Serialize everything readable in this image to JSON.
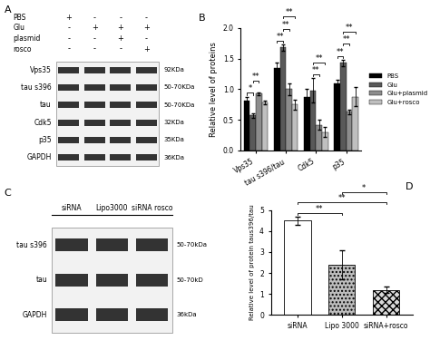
{
  "blots": [
    {
      "panel": "A",
      "lanes": 4,
      "conditions": [
        {
          "name": "PBS",
          "marks": [
            "+",
            "-",
            "-",
            "-"
          ]
        },
        {
          "name": "Glu",
          "marks": [
            "-",
            "+",
            "+",
            "+"
          ]
        },
        {
          "name": "plasmid",
          "marks": [
            "-",
            "-",
            "+",
            "-"
          ]
        },
        {
          "name": "rosco",
          "marks": [
            "-",
            "-",
            "-",
            "+"
          ]
        }
      ],
      "rows": [
        {
          "label": "Vps35",
          "size": "92KDa"
        },
        {
          "label": "tau s396",
          "size": "50-70KDa"
        },
        {
          "label": "tau",
          "size": "50-70KDa"
        },
        {
          "label": "Cdk5",
          "size": "32KDa"
        },
        {
          "label": "p35",
          "size": "35KDa"
        },
        {
          "label": "GAPDH",
          "size": "36KDa"
        }
      ]
    },
    {
      "panel": "C",
      "lane_labels": [
        "siRNA",
        "Lipo3000",
        "siRNA rosco"
      ],
      "rows": [
        {
          "label": "tau s396",
          "size": "50-70kDa"
        },
        {
          "label": "tau",
          "size": "50-70kD"
        },
        {
          "label": "GAPDH",
          "size": "36kDa"
        }
      ]
    }
  ],
  "chart_data": [
    {
      "type": "bar",
      "title": "B",
      "y_label": "Relative level of proteins",
      "categories": [
        "Vps35",
        "tau s396/tau",
        "Cdk5",
        "p35"
      ],
      "series": [
        {
          "name": "PBS",
          "color": "#000000",
          "values": [
            0.82,
            1.35,
            0.88,
            1.1
          ],
          "errors": [
            0.06,
            0.08,
            0.12,
            0.06
          ]
        },
        {
          "name": "Glu",
          "color": "#595959",
          "values": [
            0.57,
            1.68,
            0.98,
            1.43
          ],
          "errors": [
            0.03,
            0.05,
            0.2,
            0.05
          ]
        },
        {
          "name": "Glu+plasmid",
          "color": "#8c8c8c",
          "values": [
            0.93,
            1.0,
            0.42,
            0.63
          ],
          "errors": [
            0.02,
            0.1,
            0.08,
            0.04
          ]
        },
        {
          "name": "Glu+rosco",
          "color": "#bfbfbf",
          "values": [
            0.78,
            0.75,
            0.3,
            0.88
          ],
          "errors": [
            0.03,
            0.08,
            0.08,
            0.15
          ]
        }
      ],
      "significance": [
        {
          "category": "Vps35",
          "between": [
            "PBS",
            "Glu"
          ],
          "label": "*"
        },
        {
          "category": "Vps35",
          "between": [
            "Glu",
            "Glu+plasmid"
          ],
          "label": "**"
        },
        {
          "category": "tau s396/tau",
          "between": [
            "PBS",
            "Glu"
          ],
          "label": "**"
        },
        {
          "category": "tau s396/tau",
          "between": [
            "Glu",
            "Glu+plasmid"
          ],
          "label": "**"
        },
        {
          "category": "tau s396/tau",
          "between": [
            "Glu",
            "Glu+rosco"
          ],
          "label": "**"
        },
        {
          "category": "Cdk5",
          "between": [
            "Glu",
            "Glu+plasmid"
          ],
          "label": "**"
        },
        {
          "category": "Cdk5",
          "between": [
            "Glu",
            "Glu+rosco"
          ],
          "label": "**"
        },
        {
          "category": "p35",
          "between": [
            "PBS",
            "Glu"
          ],
          "label": "**"
        },
        {
          "category": "p35",
          "between": [
            "Glu",
            "Glu+plasmid"
          ],
          "label": "**"
        },
        {
          "category": "p35",
          "between": [
            "Glu",
            "Glu+rosco"
          ],
          "label": "**"
        }
      ],
      "ylim": [
        0,
        2.0
      ],
      "yticks": [
        {
          "value": 0,
          "label": "0.0"
        },
        {
          "value": 0.5,
          "label": "0.5"
        },
        {
          "value": 1.0,
          "label": "1.0"
        },
        {
          "value": 1.5,
          "label": "1.5"
        },
        {
          "value": 2.0,
          "label": "2.0"
        }
      ],
      "legend": "right"
    },
    {
      "type": "bar",
      "title": "D",
      "y_label": "Relative level of protein taus396/tau",
      "categories": [
        "siRNA",
        "Lipo 3000",
        "siRNA+rosco"
      ],
      "values": [
        4.5,
        2.4,
        1.2
      ],
      "errors": [
        0.2,
        0.7,
        0.15
      ],
      "colors": [
        "#ffffff",
        "#bdbdbd",
        "#d9d9d9"
      ],
      "significance": [
        {
          "between": [
            "siRNA",
            "Lipo 3000"
          ],
          "label": "**"
        },
        {
          "between": [
            "siRNA",
            "siRNA+rosco"
          ],
          "label": "**"
        },
        {
          "between": [
            "Lipo 3000",
            "siRNA+rosco"
          ],
          "label": "*"
        }
      ],
      "ylim": [
        0,
        5
      ],
      "yticks": [
        0,
        1,
        2,
        3,
        4,
        5
      ]
    }
  ]
}
